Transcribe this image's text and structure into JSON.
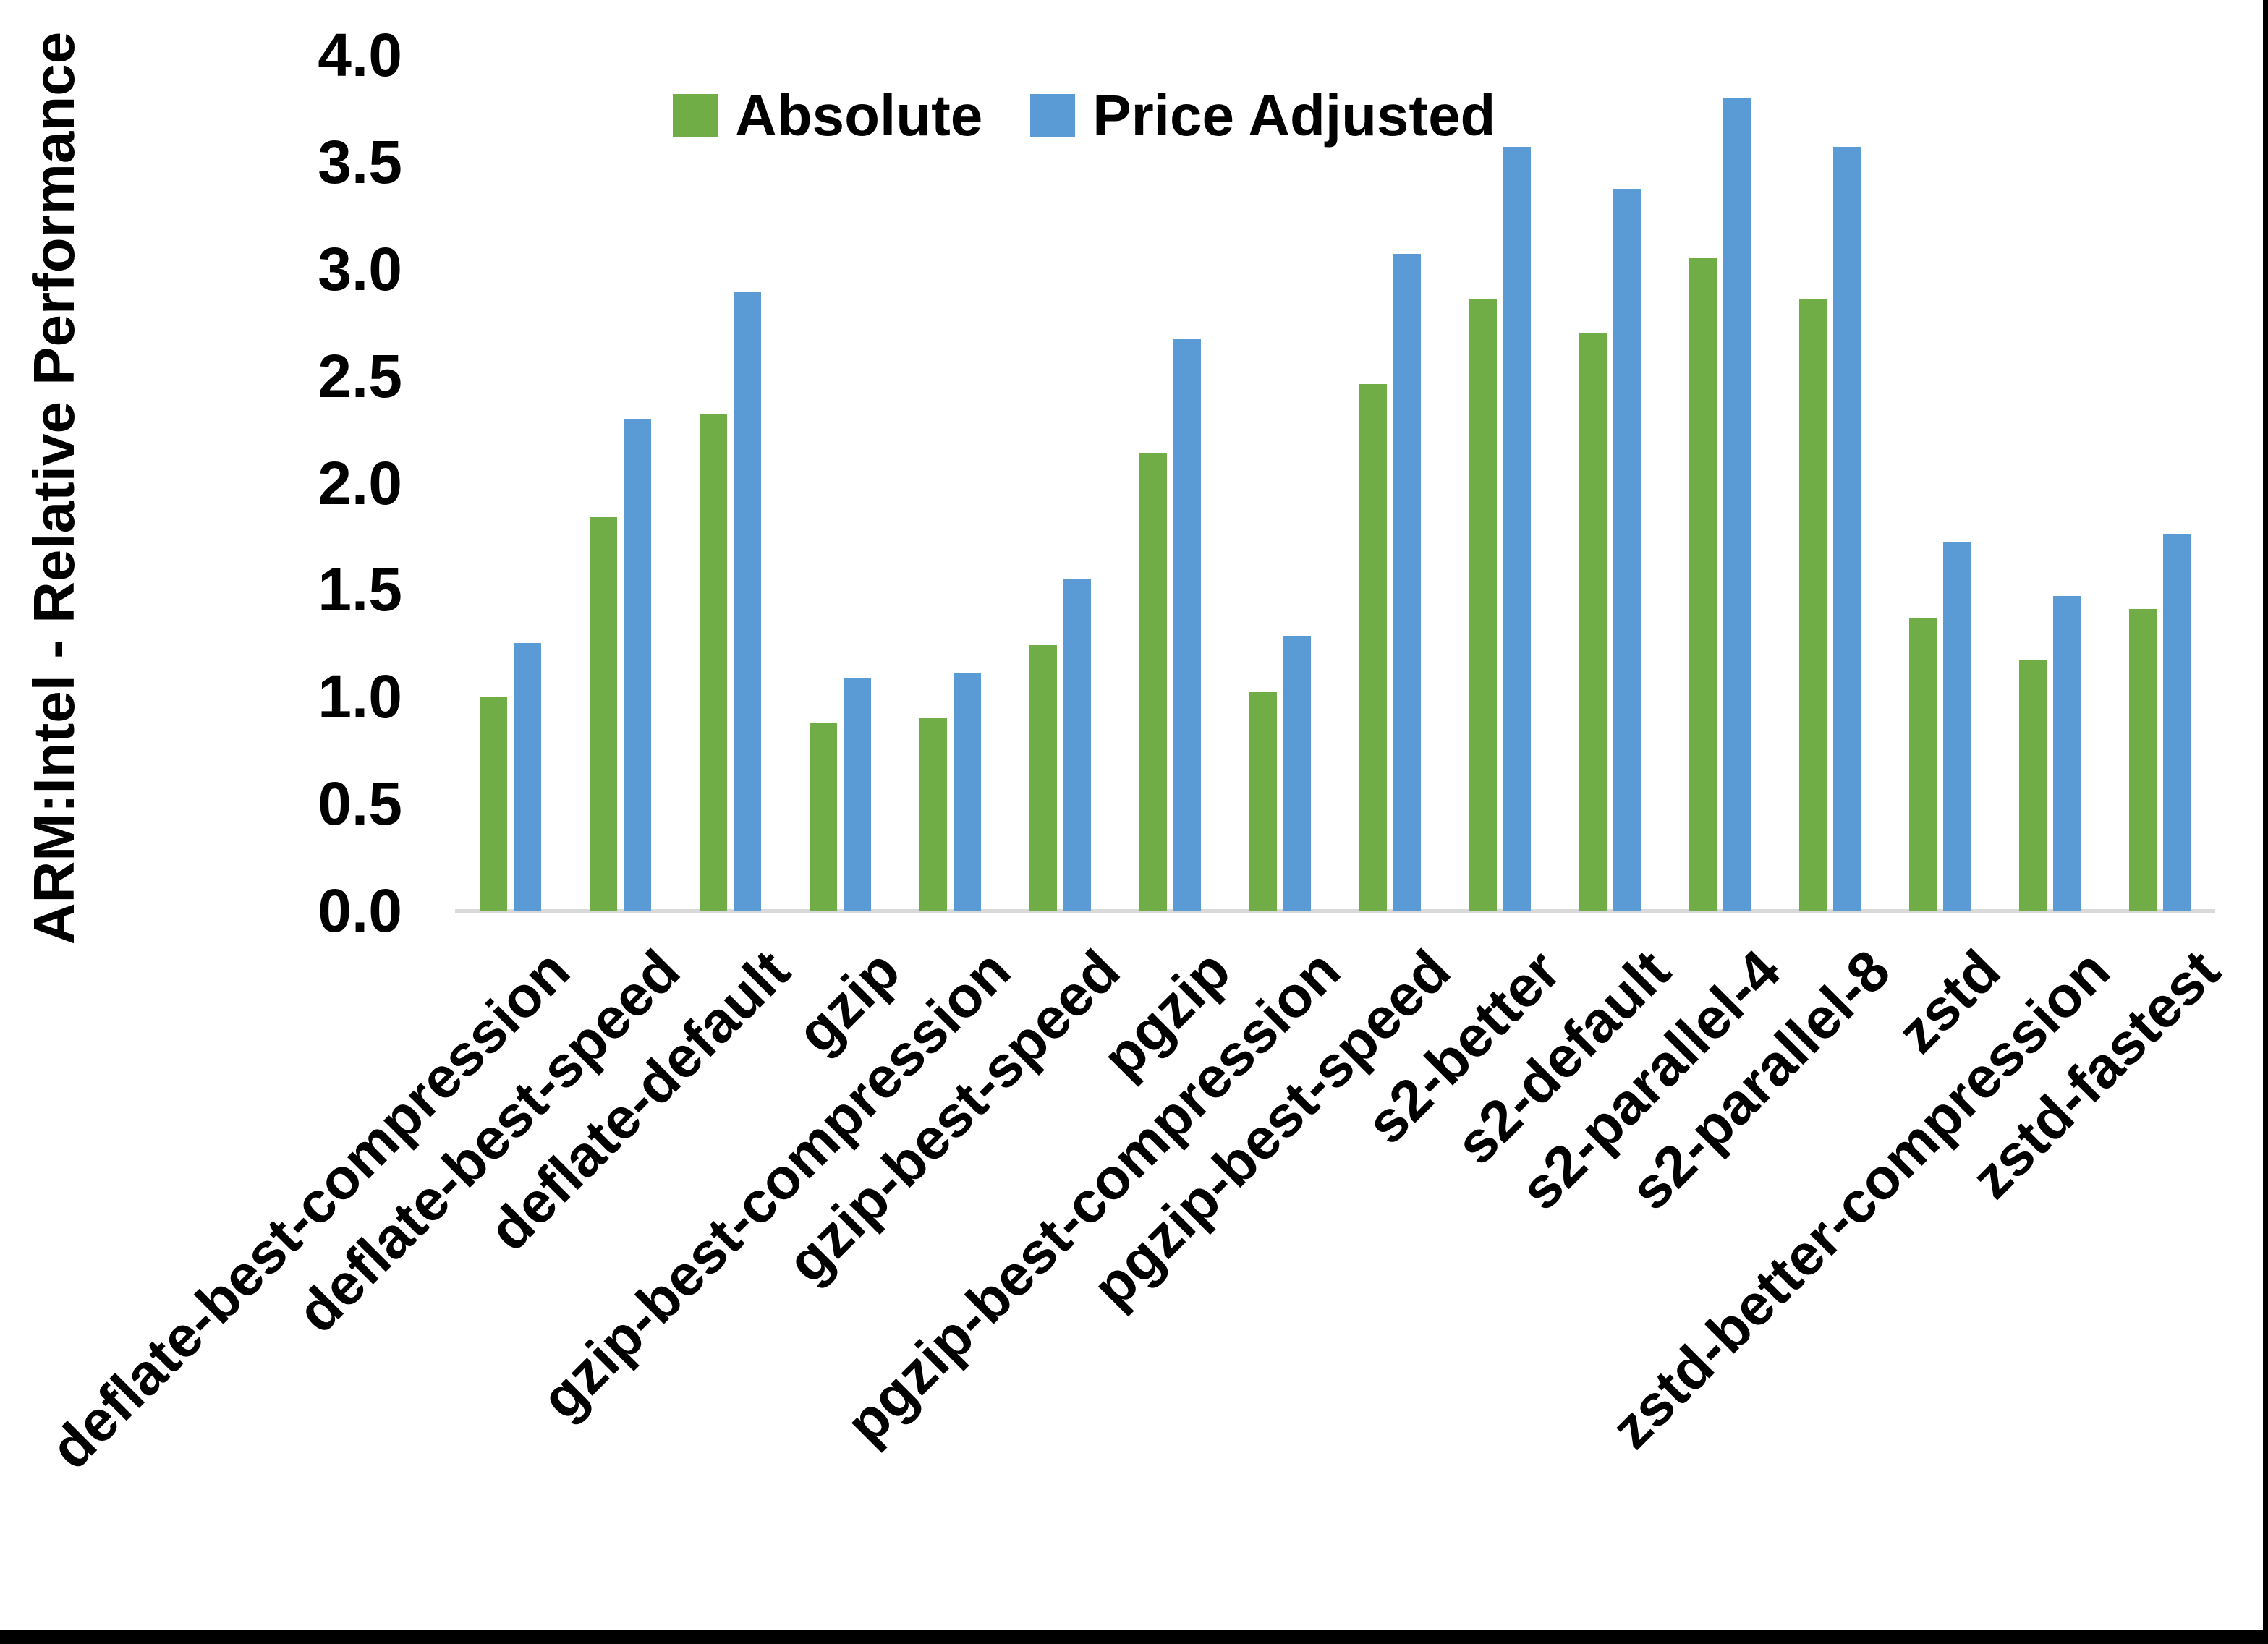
{
  "chart_data": {
    "type": "bar",
    "title": "",
    "xlabel": "",
    "ylabel": "ARM:Intel - Relative Performance",
    "ylim": [
      0,
      4.0
    ],
    "ytick_labels": [
      "0.0",
      "0.5",
      "1.0",
      "1.5",
      "2.0",
      "2.5",
      "3.0",
      "3.5",
      "4.0"
    ],
    "grid": "off",
    "legend_position": "top-center",
    "categories": [
      "deflate-best-compression",
      "deflate-best-speed",
      "deflate-default",
      "gzip",
      "gzip-best-compression",
      "gzip-best-speed",
      "pgzip",
      "pgzip-best-compression",
      "pgzip-best-speed",
      "s2-better",
      "s2-default",
      "s2-parallel-4",
      "s2-parallel-8",
      "zstd",
      "zstd-better-compression",
      "zstd-fastest"
    ],
    "series": [
      {
        "name": "Absolute",
        "color": "#70AD47",
        "values": [
          1.0,
          1.84,
          2.32,
          0.88,
          0.9,
          1.24,
          2.14,
          1.02,
          2.46,
          2.86,
          2.7,
          3.05,
          2.86,
          1.37,
          1.17,
          1.41
        ]
      },
      {
        "name": "Price Adjusted",
        "color": "#5B9BD5",
        "values": [
          1.25,
          2.3,
          2.89,
          1.09,
          1.11,
          1.55,
          2.67,
          1.28,
          3.07,
          3.57,
          3.37,
          3.8,
          3.57,
          1.72,
          1.47,
          1.76
        ]
      }
    ],
    "colors": {
      "axis_line": "#D9D9D9",
      "text": "#000000",
      "background": "#FFFFFF",
      "frame_right": "#000000",
      "frame_bottom": "#000000"
    }
  }
}
